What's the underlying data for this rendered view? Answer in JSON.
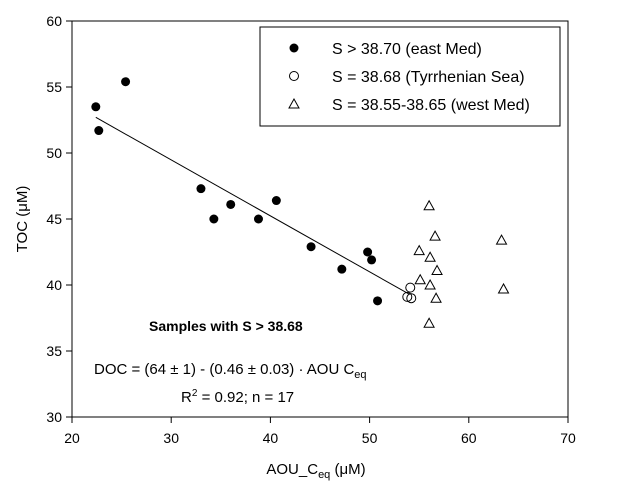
{
  "chart_data": {
    "type": "scatter",
    "xlabel": "AOU_C",
    "xlabel_sub": "eq",
    "xlabel_unit": "(μM)",
    "ylabel": "TOC (μM)",
    "xlim": [
      20,
      70
    ],
    "ylim": [
      30,
      60
    ],
    "xticks": [
      20,
      30,
      40,
      50,
      60,
      70
    ],
    "yticks": [
      30,
      35,
      40,
      45,
      50,
      55,
      60
    ],
    "grid": false,
    "legend_position": "top-right",
    "series": [
      {
        "name": "S > 38.70 (east Med)",
        "marker": "filled-circle",
        "points": [
          {
            "x": 22.4,
            "y": 53.5
          },
          {
            "x": 22.7,
            "y": 51.7
          },
          {
            "x": 25.4,
            "y": 55.4
          },
          {
            "x": 33.0,
            "y": 47.3
          },
          {
            "x": 34.3,
            "y": 45.0
          },
          {
            "x": 36.0,
            "y": 46.1
          },
          {
            "x": 38.8,
            "y": 45.0
          },
          {
            "x": 40.6,
            "y": 46.4
          },
          {
            "x": 44.1,
            "y": 42.9
          },
          {
            "x": 47.2,
            "y": 41.2
          },
          {
            "x": 49.8,
            "y": 42.5
          },
          {
            "x": 50.2,
            "y": 41.9
          },
          {
            "x": 50.8,
            "y": 38.8
          }
        ]
      },
      {
        "name": "S = 38.68 (Tyrrhenian Sea)",
        "marker": "open-circle",
        "points": [
          {
            "x": 53.8,
            "y": 39.1
          },
          {
            "x": 54.1,
            "y": 39.8
          },
          {
            "x": 54.2,
            "y": 39.0
          }
        ]
      },
      {
        "name": "S = 38.55-38.65 (west Med)",
        "marker": "open-triangle",
        "points": [
          {
            "x": 55.0,
            "y": 42.6
          },
          {
            "x": 55.1,
            "y": 40.4
          },
          {
            "x": 56.0,
            "y": 46.0
          },
          {
            "x": 56.0,
            "y": 37.1
          },
          {
            "x": 56.1,
            "y": 40.0
          },
          {
            "x": 56.1,
            "y": 42.1
          },
          {
            "x": 56.6,
            "y": 43.7
          },
          {
            "x": 56.7,
            "y": 39.0
          },
          {
            "x": 56.8,
            "y": 41.1
          },
          {
            "x": 63.3,
            "y": 43.4
          },
          {
            "x": 63.5,
            "y": 39.7
          }
        ]
      }
    ],
    "regression_line": {
      "x1": 22.4,
      "y1": 52.7,
      "x2": 54.0,
      "y2": 39.3
    },
    "annotations": {
      "subset_label": "Samples with S > 38.68",
      "equation_main": "DOC = (64 ± 1) - (0.46 ± 0.03) · AOU C",
      "equation_sub": "eq",
      "r2_prefix": "R",
      "r2_sup": "2",
      "r2_rest": " = 0.92; n = 17"
    }
  }
}
